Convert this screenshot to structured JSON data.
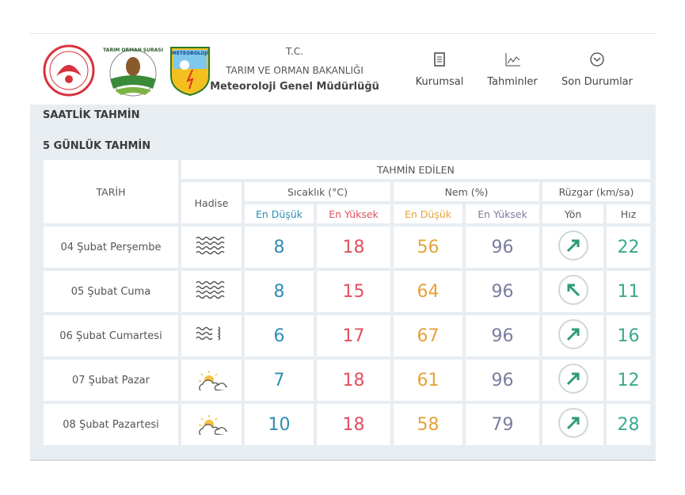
{
  "header": {
    "logos": [
      "TARIM ORMAN ŞURASI",
      "METEOROLOJİ"
    ],
    "tc": "T.C.",
    "ministry": "TARIM VE ORMAN BAKANLIĞI",
    "directorate": "Meteoroloji Genel Müdürlüğü"
  },
  "nav": [
    "Kurumsal",
    "Tahminler",
    "Son Durumlar"
  ],
  "sections": [
    "SAATLİK TAHMİN",
    "5 GÜNLÜK TAHMİN"
  ],
  "table": {
    "headers": {
      "date": "TARİH",
      "forecast": "TAHMİN EDİLEN",
      "event": "Hadise",
      "temperature": "Sıcaklık (°C)",
      "humidity": "Nem (%)",
      "wind": "Rüzgar (km/sa)",
      "temp_min": "En Düşük",
      "temp_max": "En Yüksek",
      "hum_min": "En Düşük",
      "hum_max": "En Yüksek",
      "direction": "Yön",
      "speed": "Hız"
    },
    "rows": [
      {
        "date": "04 Şubat Perşembe",
        "temp_min": 8,
        "temp_max": 18,
        "hum_min": 56,
        "hum_max": 96,
        "speed": 22
      },
      {
        "date": "05 Şubat Cuma",
        "temp_min": 8,
        "temp_max": 15,
        "hum_min": 64,
        "hum_max": 96,
        "speed": 11
      },
      {
        "date": "06 Şubat Cumartesi",
        "temp_min": 6,
        "temp_max": 17,
        "hum_min": 67,
        "hum_max": 96,
        "speed": 16
      },
      {
        "date": "07 Şubat Pazar",
        "temp_min": 7,
        "temp_max": 18,
        "hum_min": 61,
        "hum_max": 96,
        "speed": 12
      },
      {
        "date": "08 Şubat Pazartesi",
        "temp_min": 10,
        "temp_max": 18,
        "hum_min": 58,
        "hum_max": 79,
        "speed": 28
      }
    ]
  }
}
